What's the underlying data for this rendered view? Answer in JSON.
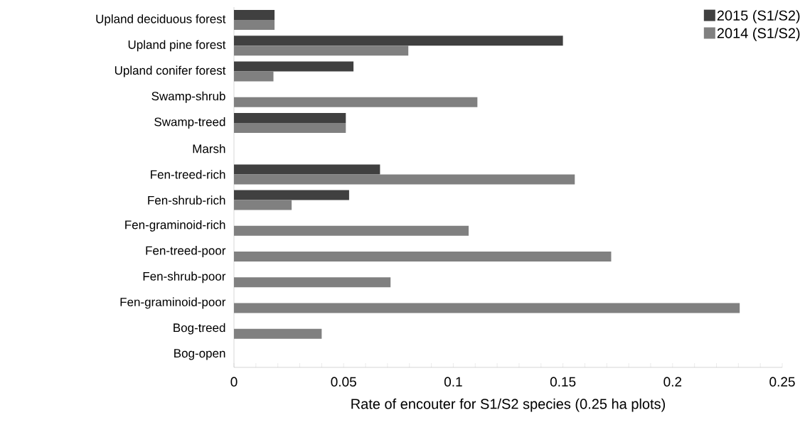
{
  "chart_data": {
    "type": "bar",
    "orientation": "horizontal",
    "xlabel": "Rate of encouter for S1/S2 species (0.25 ha plots)",
    "categories": [
      "Upland deciduous forest",
      "Upland pine forest",
      "Upland conifer forest",
      "Swamp-shrub",
      "Swamp-treed",
      "Marsh",
      "Fen-treed-rich",
      "Fen-shrub-rich",
      "Fen-graminoid-rich",
      "Fen-treed-poor",
      "Fen-shrub-poor",
      "Fen-graminoid-poor",
      "Bog-treed",
      "Bog-open"
    ],
    "series": [
      {
        "name": "2015 (S1/S2)",
        "color": "#404040",
        "values": [
          0.0185,
          0.15,
          0.0545,
          0,
          0.051,
          0,
          0.0666,
          0.0525,
          0,
          0,
          0,
          0,
          0,
          0
        ]
      },
      {
        "name": "2014 (S1/S2)",
        "color": "#808080",
        "values": [
          0.0185,
          0.0795,
          0.018,
          0.111,
          0.051,
          0,
          0.1554,
          0.0263,
          0.107,
          0.172,
          0.0714,
          0.2306,
          0.04,
          0
        ]
      }
    ],
    "xlim": [
      0,
      0.25
    ],
    "xticks": [
      0,
      0.05,
      0.1,
      0.15,
      0.2,
      0.25
    ],
    "grid": false,
    "legend": "top right"
  }
}
